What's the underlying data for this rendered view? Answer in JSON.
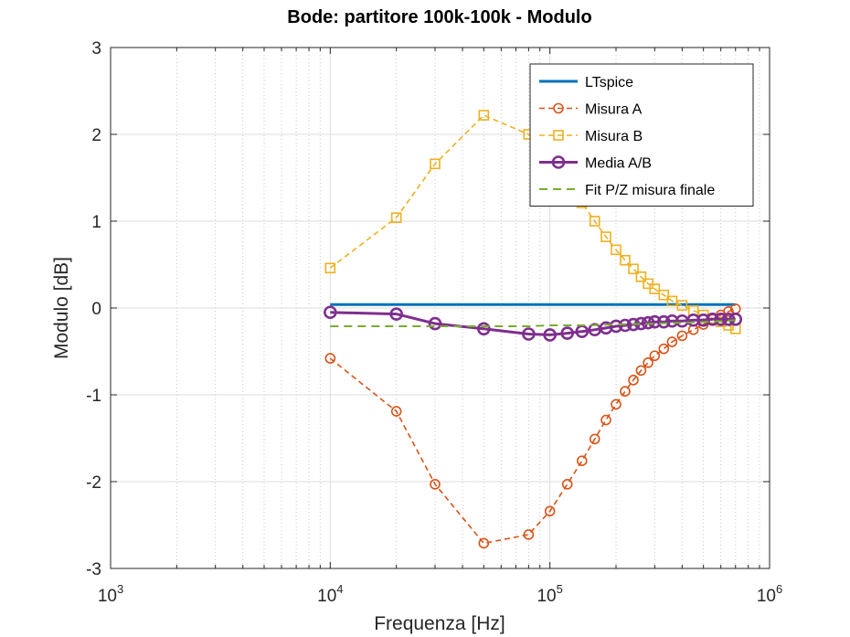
{
  "chart_data": {
    "type": "line",
    "title": "Bode: partitore 100k-100k - Modulo",
    "xlabel": "Frequenza [Hz]",
    "ylabel": "Modulo [dB]",
    "xscale": "log",
    "xlim": [
      1000,
      1000000
    ],
    "ylim": [
      -3,
      3
    ],
    "grid": true,
    "legend_position": "top-right",
    "x_ticks": [
      {
        "base": "10",
        "exp": "3"
      },
      {
        "base": "10",
        "exp": "4"
      },
      {
        "base": "10",
        "exp": "5"
      },
      {
        "base": "10",
        "exp": "6"
      }
    ],
    "y_ticks": [
      "-3",
      "-2",
      "-1",
      "0",
      "1",
      "2",
      "3"
    ],
    "series": [
      {
        "name": "LTspice",
        "color": "#0072BD",
        "style": "solid",
        "marker": "none",
        "x": [
          10000,
          700000
        ],
        "y": [
          0.04,
          0.04
        ]
      },
      {
        "name": "Misura A",
        "color": "#D95319",
        "style": "dashed",
        "marker": "circle",
        "x": [
          10000,
          20000,
          30000,
          50000,
          80000,
          100000,
          120000,
          140000,
          160000,
          180000,
          200000,
          220000,
          240000,
          260000,
          280000,
          300000,
          330000,
          360000,
          400000,
          450000,
          500000,
          550000,
          600000,
          650000,
          700000
        ],
        "y": [
          -0.58,
          -1.19,
          -2.03,
          -2.71,
          -2.61,
          -2.34,
          -2.03,
          -1.76,
          -1.51,
          -1.29,
          -1.11,
          -0.96,
          -0.83,
          -0.72,
          -0.63,
          -0.55,
          -0.47,
          -0.39,
          -0.32,
          -0.25,
          -0.19,
          -0.13,
          -0.08,
          -0.04,
          -0.01
        ]
      },
      {
        "name": "Misura B",
        "color": "#EDB120",
        "style": "dashed",
        "marker": "square",
        "x": [
          10000,
          20000,
          30000,
          50000,
          80000,
          100000,
          120000,
          140000,
          160000,
          180000,
          200000,
          220000,
          240000,
          260000,
          280000,
          300000,
          330000,
          360000,
          400000,
          450000,
          500000,
          550000,
          600000,
          650000,
          700000
        ],
        "y": [
          0.46,
          1.04,
          1.66,
          2.22,
          2.0,
          1.75,
          1.45,
          1.21,
          1.0,
          0.82,
          0.67,
          0.55,
          0.45,
          0.36,
          0.28,
          0.22,
          0.15,
          0.08,
          0.03,
          -0.03,
          -0.08,
          -0.12,
          -0.16,
          -0.2,
          -0.24
        ]
      },
      {
        "name": "Media A/B",
        "color": "#7E2F8E",
        "style": "solid",
        "marker": "circle",
        "x": [
          10000,
          20000,
          30000,
          50000,
          80000,
          100000,
          120000,
          140000,
          160000,
          180000,
          200000,
          220000,
          240000,
          260000,
          280000,
          300000,
          330000,
          360000,
          400000,
          450000,
          500000,
          550000,
          600000,
          650000,
          700000
        ],
        "y": [
          -0.05,
          -0.07,
          -0.18,
          -0.24,
          -0.3,
          -0.31,
          -0.29,
          -0.27,
          -0.25,
          -0.23,
          -0.21,
          -0.2,
          -0.19,
          -0.18,
          -0.17,
          -0.16,
          -0.16,
          -0.15,
          -0.15,
          -0.14,
          -0.14,
          -0.13,
          -0.13,
          -0.13,
          -0.13
        ]
      },
      {
        "name": "Fit P/Z misura finale",
        "color": "#77AC30",
        "style": "dashed",
        "marker": "none",
        "x": [
          10000,
          20000,
          30000,
          50000,
          80000,
          100000,
          150000,
          200000,
          300000,
          400000,
          500000,
          600000,
          700000
        ],
        "y": [
          -0.21,
          -0.21,
          -0.21,
          -0.21,
          -0.21,
          -0.2,
          -0.2,
          -0.19,
          -0.18,
          -0.17,
          -0.16,
          -0.15,
          -0.14
        ]
      }
    ]
  }
}
